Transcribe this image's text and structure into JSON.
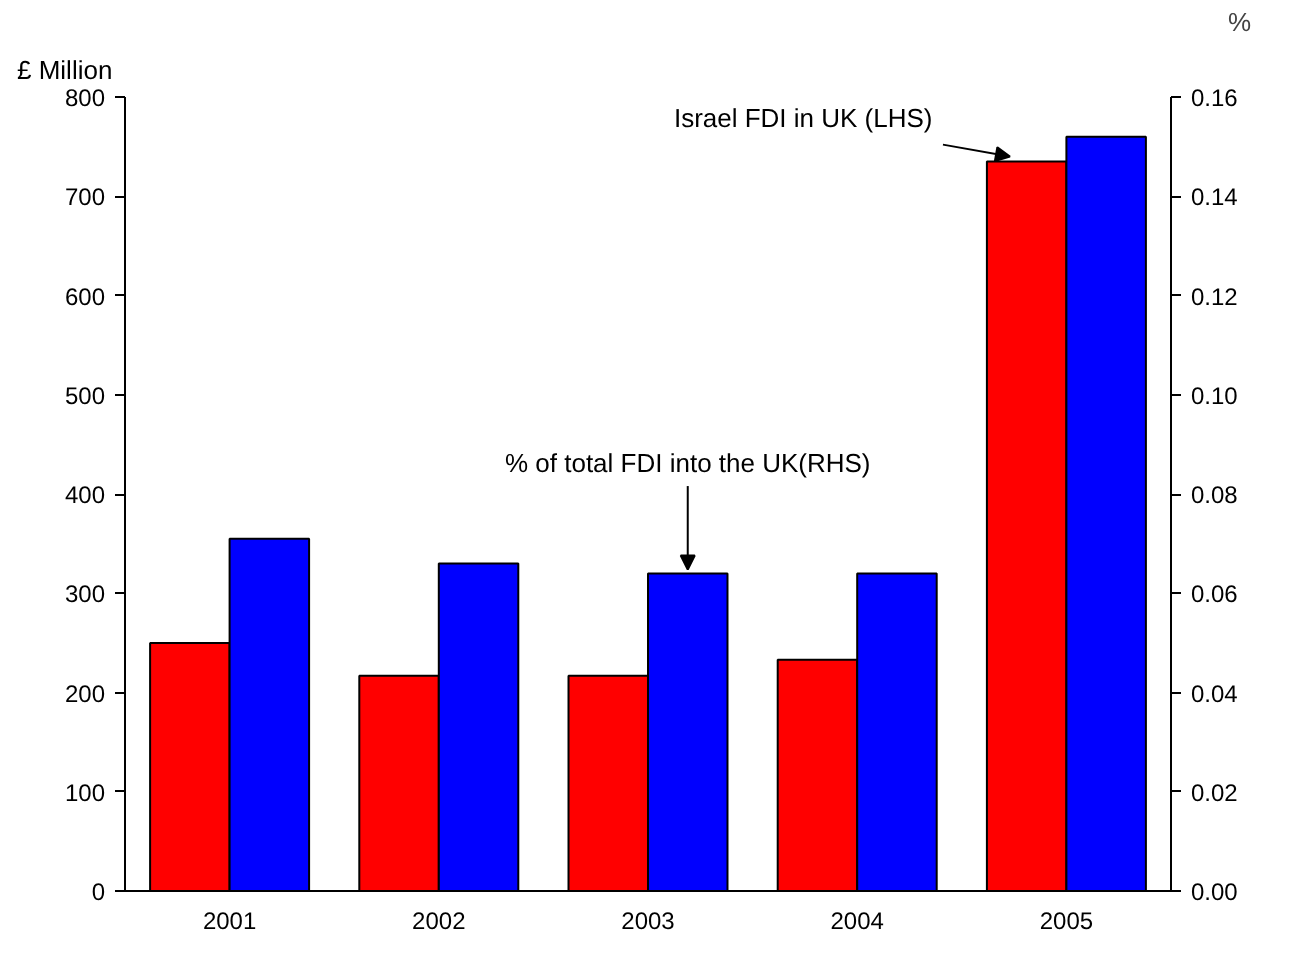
{
  "chart_data": {
    "type": "bar",
    "categories": [
      "2001",
      "2002",
      "2003",
      "2004",
      "2005"
    ],
    "ylabel": "£ Million",
    "y2label": "%",
    "series": [
      {
        "name": "Israel FDI in UK (LHS)",
        "color": "#ff0000",
        "values": [
          250,
          217,
          217,
          233,
          735
        ]
      },
      {
        "name": "% of total FDI into the UK(RHS)",
        "color": "#0000ff",
        "axis": "y2",
        "values": [
          0.071,
          0.066,
          0.064,
          0.064,
          0.152
        ]
      }
    ],
    "ylim": [
      0,
      800
    ],
    "yticks": [
      0,
      100,
      200,
      300,
      400,
      500,
      600,
      700,
      800
    ],
    "y2lim": [
      0,
      0.16
    ],
    "y2ticks": [
      {
        "value": 0,
        "label": "0.00"
      },
      {
        "value": 0.02,
        "label": "0.02"
      },
      {
        "value": 0.04,
        "label": "0.04"
      },
      {
        "value": 0.06,
        "label": "0.06"
      },
      {
        "value": 0.08,
        "label": "0.08"
      },
      {
        "value": 0.1,
        "label": "0.10"
      },
      {
        "value": 0.12,
        "label": "0.12"
      },
      {
        "value": 0.14,
        "label": "0.14"
      },
      {
        "value": 0.16,
        "label": "0.16"
      }
    ],
    "grid": false,
    "legend": false
  }
}
